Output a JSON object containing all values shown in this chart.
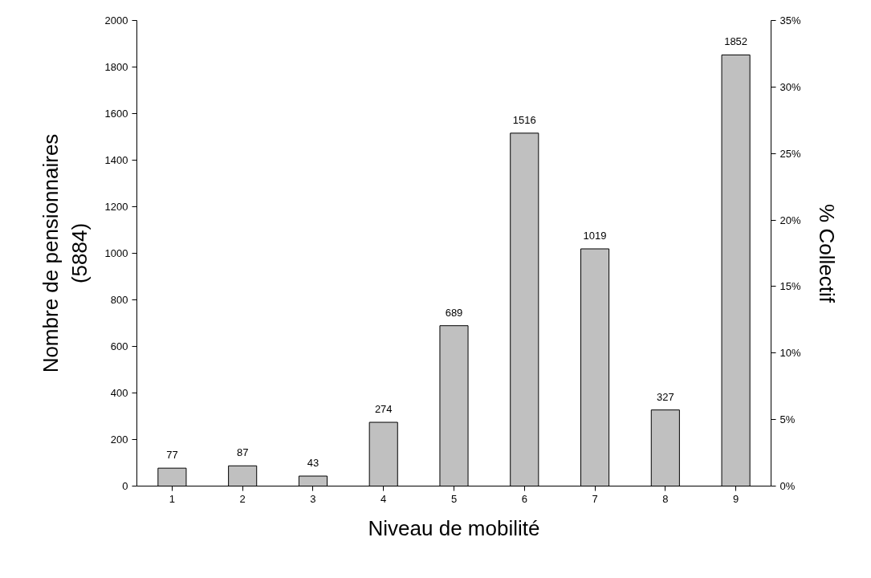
{
  "chart_data": {
    "type": "bar",
    "xlabel": "Niveau de mobilité",
    "ylabel": "Nombre de pensionnaires\n(5884)",
    "y2label": "% Collectif",
    "categories": [
      "1",
      "2",
      "3",
      "4",
      "5",
      "6",
      "7",
      "8",
      "9"
    ],
    "series": [
      {
        "color": "#c0c0c0",
        "values": [
          77,
          87,
          43,
          274,
          689,
          1516,
          1019,
          327,
          1852
        ]
      }
    ],
    "data_labels": true,
    "ylim": [
      0,
      2000
    ],
    "yticks": [
      0,
      200,
      400,
      600,
      800,
      1000,
      1200,
      1400,
      1600,
      1800,
      2000
    ],
    "y2lim": [
      0,
      35
    ],
    "y2ticks": [
      {
        "value": 0,
        "label": "0%"
      },
      {
        "value": 5,
        "label": "5%"
      },
      {
        "value": 10,
        "label": "10%"
      },
      {
        "value": 15,
        "label": "15%"
      },
      {
        "value": 20,
        "label": "20%"
      },
      {
        "value": 25,
        "label": "25%"
      },
      {
        "value": 30,
        "label": "30%"
      },
      {
        "value": 35,
        "label": "35%"
      }
    ],
    "grid": false
  }
}
